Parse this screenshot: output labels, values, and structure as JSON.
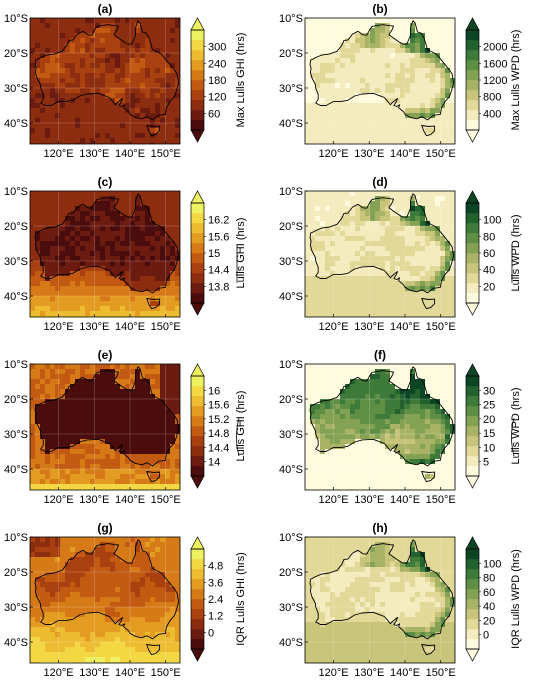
{
  "figure": {
    "lat_ticks": [
      "10°S",
      "20°S",
      "30°S",
      "40°S"
    ],
    "lon_ticks": [
      "120°E",
      "130°E",
      "140°E",
      "150°E"
    ],
    "panels": [
      {
        "id": "a",
        "label": "(a)",
        "variable": "GHI",
        "colorbar_label": "Max Lulls GHI (hrs)",
        "colorbar_ticks": [
          "60",
          "120",
          "180",
          "240",
          "300"
        ],
        "colors": [
          "#4a0c0c",
          "#6b1b0f",
          "#8c2d10",
          "#a84010",
          "#c25a12",
          "#d67a18",
          "#e49b22",
          "#eebc30",
          "#f3d844",
          "#eef261"
        ],
        "land_pattern": "coarse",
        "land_base": 0.32,
        "ocean_base": 0.22,
        "noise_amp": 0.16
      },
      {
        "id": "b",
        "label": "(b)",
        "variable": "WPD",
        "colorbar_label": "Max Lulls WPD (hrs)",
        "colorbar_ticks": [
          "400",
          "800",
          "1200",
          "1600",
          "2000"
        ],
        "colors": [
          "#fffbdf",
          "#f4ecbf",
          "#e2d898",
          "#c8c57a",
          "#a9b365",
          "#84a253",
          "#5e8f45",
          "#3e7a39",
          "#21622f",
          "#0b4524"
        ],
        "land_pattern": "wpd",
        "land_base": 0.18,
        "ocean_base": 0.05,
        "noise_amp": 0.1
      },
      {
        "id": "c",
        "label": "(c)",
        "variable": "GHI",
        "colorbar_label": "Lulls GHI (hrs)",
        "overline": true,
        "colorbar_ticks": [
          "13.8",
          "14.4",
          "15",
          "15.6",
          "16.2"
        ],
        "colors": [
          "#4a0c0c",
          "#6b1b0f",
          "#8c2d10",
          "#a84010",
          "#c25a12",
          "#d67a18",
          "#e49b22",
          "#eebc30",
          "#f3d844",
          "#eef261"
        ],
        "land_pattern": "lat_c",
        "land_base": 0.1,
        "ocean_base": 0.3,
        "noise_amp": 0.06
      },
      {
        "id": "d",
        "label": "(d)",
        "variable": "WPD",
        "colorbar_label": "Lulls WPD (hrs)",
        "overline": true,
        "colorbar_ticks": [
          "20",
          "40",
          "60",
          "80",
          "100"
        ],
        "colors": [
          "#fffbdf",
          "#f4ecbf",
          "#e2d898",
          "#c8c57a",
          "#a9b365",
          "#84a253",
          "#5e8f45",
          "#3e7a39",
          "#21622f",
          "#0b4524"
        ],
        "land_pattern": "wpd",
        "land_base": 0.2,
        "ocean_base": 0.12,
        "noise_amp": 0.1
      },
      {
        "id": "e",
        "label": "(e)",
        "variable": "GHI",
        "colorbar_label": "Lulls GHI (hrs)",
        "tilde": true,
        "colorbar_ticks": [
          "14",
          "14.4",
          "14.8",
          "15.2",
          "15.6",
          "16"
        ],
        "colors": [
          "#4a0c0c",
          "#6b1b0f",
          "#8c2d10",
          "#a84010",
          "#c25a12",
          "#d67a18",
          "#e49b22",
          "#eebc30",
          "#f3d844",
          "#eef261"
        ],
        "land_pattern": "flat",
        "land_base": 0.02,
        "ocean_base": 0.55,
        "noise_amp": 0.05
      },
      {
        "id": "f",
        "label": "(f)",
        "variable": "WPD",
        "colorbar_label": "Lulls WPD (hrs)",
        "tilde": true,
        "colorbar_ticks": [
          "5",
          "10",
          "15",
          "20",
          "25",
          "30"
        ],
        "colors": [
          "#fffbdf",
          "#f4ecbf",
          "#e2d898",
          "#c8c57a",
          "#a9b365",
          "#84a253",
          "#5e8f45",
          "#3e7a39",
          "#21622f",
          "#0b4524"
        ],
        "land_pattern": "wpd_f",
        "land_base": 0.45,
        "ocean_base": 0.04,
        "noise_amp": 0.12
      },
      {
        "id": "g",
        "label": "(g)",
        "variable": "GHI",
        "colorbar_label": "IQR Lulls GHI (hrs)",
        "colorbar_ticks": [
          "0",
          "1.2",
          "2.4",
          "3.6",
          "4.8"
        ],
        "colors": [
          "#4a0c0c",
          "#6b1b0f",
          "#8c2d10",
          "#a84010",
          "#c25a12",
          "#d67a18",
          "#e49b22",
          "#eebc30",
          "#f3d844",
          "#eef261"
        ],
        "land_pattern": "bands",
        "land_base": 0.5,
        "ocean_base": 0.6,
        "noise_amp": 0.05
      },
      {
        "id": "h",
        "label": "(h)",
        "variable": "WPD",
        "colorbar_label": "IQR Lulls WPD (hrs)",
        "colorbar_ticks": [
          "0",
          "20",
          "40",
          "60",
          "80",
          "100"
        ],
        "colors": [
          "#fffbdf",
          "#f4ecbf",
          "#e2d898",
          "#c8c57a",
          "#a9b365",
          "#84a253",
          "#5e8f45",
          "#3e7a39",
          "#21622f",
          "#0b4524"
        ],
        "land_pattern": "wpd",
        "land_base": 0.2,
        "ocean_base": 0.24,
        "noise_amp": 0.08
      }
    ]
  }
}
